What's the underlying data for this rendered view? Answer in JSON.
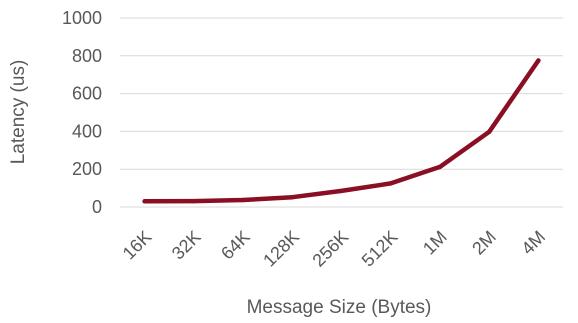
{
  "chart_data": {
    "type": "line",
    "categories": [
      "16K",
      "32K",
      "64K",
      "128K",
      "256K",
      "512K",
      "1M",
      "2M",
      "4M"
    ],
    "series": [
      {
        "values": [
          30,
          31,
          37,
          52,
          85,
          125,
          212,
          398,
          775
        ],
        "color": "#8b0f24"
      }
    ],
    "xlabel": "Message Size (Bytes)",
    "ylabel": "Latency (us)",
    "ylim": [
      0,
      1000
    ],
    "yticks": [
      0,
      200,
      400,
      600,
      800,
      1000
    ],
    "grid": true,
    "legend": "none"
  }
}
